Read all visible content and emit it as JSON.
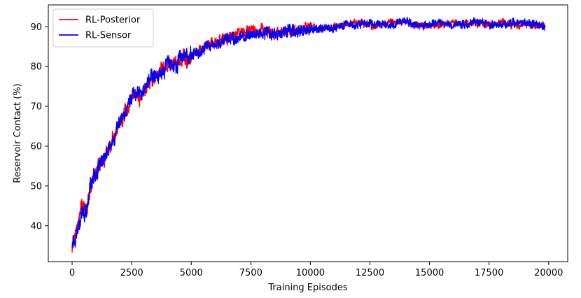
{
  "chart_data": {
    "type": "line",
    "title": "",
    "xlabel": "Training Episodes",
    "ylabel": "Reservoir Contact (%)",
    "xlim": [
      -1000,
      20800
    ],
    "ylim": [
      31,
      95.5
    ],
    "xticks": [
      0,
      2500,
      5000,
      7500,
      10000,
      12500,
      15000,
      17500,
      20000
    ],
    "yticks": [
      40,
      50,
      60,
      70,
      80,
      90
    ],
    "grid": false,
    "legend_position": "top-left",
    "series": [
      {
        "name": "RL-Posterior",
        "color": "#ff0000",
        "x": [
          0,
          200,
          400,
          600,
          800,
          1000,
          1200,
          1400,
          1600,
          1800,
          2000,
          2200,
          2400,
          2600,
          2800,
          3000,
          3200,
          3400,
          3600,
          3800,
          4000,
          4300,
          4600,
          5000,
          5300,
          5600,
          6000,
          6500,
          7000,
          7500,
          8000,
          8500,
          9000,
          9500,
          10000,
          10500,
          11000,
          11500,
          12000,
          12500,
          13000,
          13500,
          14000,
          14500,
          15000,
          15500,
          16000,
          16500,
          17000,
          17500,
          18000,
          18500,
          19000,
          19500,
          19850
        ],
        "values": [
          35,
          39,
          45,
          44,
          50,
          54,
          55,
          58,
          60,
          63,
          66,
          68,
          70,
          74,
          72,
          73,
          76,
          77,
          78,
          79,
          80,
          81,
          82,
          82,
          84,
          85,
          86,
          87,
          88,
          89,
          89.5,
          88.5,
          89,
          89.5,
          90,
          89.5,
          90,
          90.5,
          91,
          90.5,
          90.5,
          91,
          91.5,
          90,
          90.5,
          90.5,
          91,
          91,
          91,
          90.5,
          91,
          90.5,
          90.5,
          90.5,
          90
        ]
      },
      {
        "name": "RL-Sensor",
        "color": "#0000ff",
        "x": [
          0,
          200,
          400,
          600,
          800,
          1000,
          1200,
          1400,
          1600,
          1800,
          2000,
          2200,
          2400,
          2600,
          2800,
          3000,
          3200,
          3400,
          3600,
          3800,
          4000,
          4300,
          4600,
          5000,
          5300,
          5600,
          6000,
          6500,
          7000,
          7500,
          8000,
          8500,
          9000,
          9500,
          10000,
          10500,
          11000,
          11500,
          12000,
          12500,
          13000,
          13500,
          14000,
          14500,
          15000,
          15500,
          16000,
          16500,
          17000,
          17500,
          18000,
          18500,
          19000,
          19500,
          19850
        ],
        "values": [
          35,
          38,
          44,
          43,
          51,
          53,
          56,
          57,
          61,
          62,
          67,
          67,
          71,
          73,
          73,
          74,
          76,
          78,
          78,
          78,
          81,
          80,
          82,
          83,
          83,
          85,
          85,
          87,
          87,
          88.5,
          88.5,
          88,
          89,
          89,
          89.5,
          89.5,
          89.5,
          90.5,
          90.5,
          91,
          90.5,
          90.5,
          91.5,
          90,
          90.5,
          91,
          90.5,
          90.5,
          91.5,
          90.5,
          90.5,
          91,
          91,
          90.5,
          90
        ]
      }
    ]
  }
}
